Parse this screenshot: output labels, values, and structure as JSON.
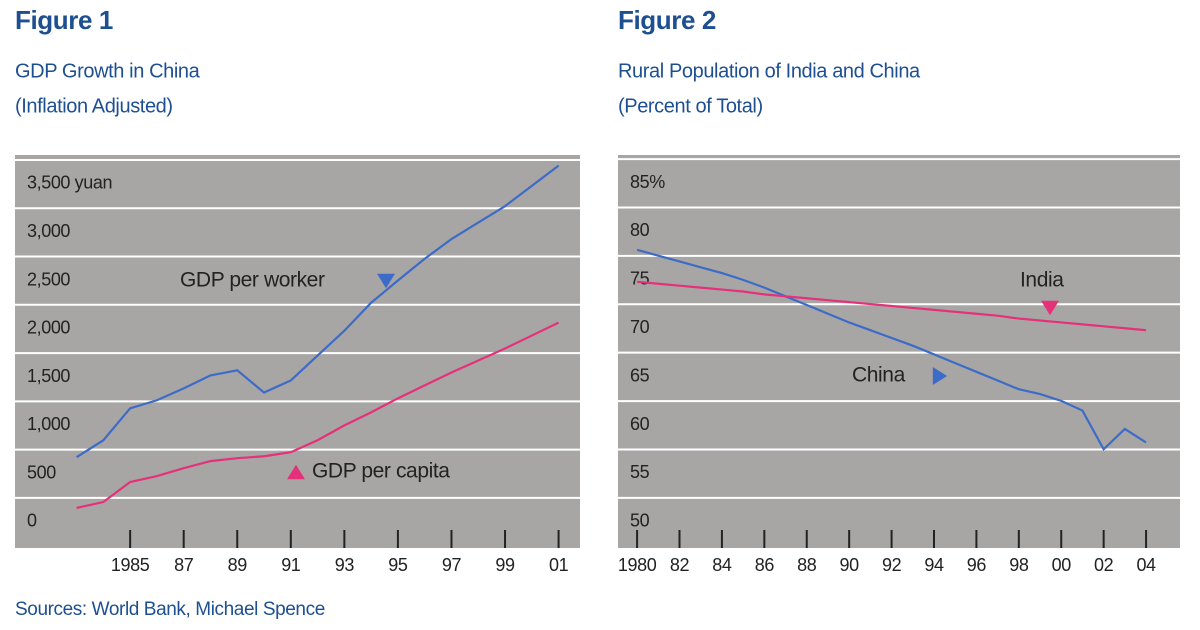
{
  "chart_data": [
    {
      "type": "line",
      "figure": "Figure 1",
      "title": "GDP Growth in China",
      "subtitle": "(Inflation Adjusted)",
      "x": [
        1983,
        1984,
        1985,
        1986,
        1987,
        1988,
        1989,
        1990,
        1991,
        1992,
        1993,
        1994,
        1995,
        1996,
        1997,
        1998,
        1999,
        2000,
        2001
      ],
      "series": [
        {
          "name": "GDP per worker",
          "color": "#3d6bc8",
          "values": [
            670,
            846,
            1177,
            1260,
            1383,
            1517,
            1570,
            1340,
            1465,
            1723,
            1980,
            2270,
            2500,
            2725,
            2930,
            3100,
            3270,
            3480,
            3690
          ]
        },
        {
          "name": "GDP per capita",
          "color": "#e5307a",
          "values": [
            145,
            206,
            413,
            475,
            557,
            630,
            660,
            680,
            722,
            846,
            1000,
            1135,
            1280,
            1414,
            1548,
            1672,
            1796,
            1930,
            2064
          ]
        }
      ],
      "xlim": [
        1980.7,
        2001.8
      ],
      "xticks": [
        {
          "value": 1985,
          "label": "1985"
        },
        {
          "value": 1987,
          "label": "87"
        },
        {
          "value": 1989,
          "label": "89"
        },
        {
          "value": 1991,
          "label": "91"
        },
        {
          "value": 1993,
          "label": "93"
        },
        {
          "value": 1995,
          "label": "95"
        },
        {
          "value": 1997,
          "label": "97"
        },
        {
          "value": 1999,
          "label": "99"
        },
        {
          "value": 2001,
          "label": "01"
        }
      ],
      "ylim": [
        -270,
        3800
      ],
      "yticks": [
        0,
        500,
        {
          "value": 1000,
          "label": "1,000"
        },
        {
          "value": 1500,
          "label": "1,500"
        },
        {
          "value": 2000,
          "label": "2,000"
        },
        {
          "value": 2500,
          "label": "2,500"
        },
        {
          "value": 3000,
          "label": "3,000"
        },
        {
          "value": 3500,
          "label": "3,500 yuan"
        }
      ],
      "grid": true
    },
    {
      "type": "line",
      "figure": "Figure 2",
      "title": "Rural Population of India and China",
      "subtitle": "(Percent of Total)",
      "x": [
        1980,
        1981,
        1982,
        1983,
        1984,
        1985,
        1986,
        1987,
        1988,
        1989,
        1990,
        1991,
        1992,
        1993,
        1994,
        1995,
        1996,
        1997,
        1998,
        1999,
        2000,
        2001,
        2002,
        2003,
        2004
      ],
      "series": [
        {
          "name": "China",
          "color": "#3d6bc8",
          "values": [
            78.1,
            77.5,
            76.9,
            76.3,
            75.7,
            75.0,
            74.2,
            73.3,
            72.4,
            71.5,
            70.6,
            69.8,
            69.0,
            68.2,
            67.3,
            66.4,
            65.5,
            64.6,
            63.7,
            63.2,
            62.5,
            61.5,
            57.5,
            59.6,
            58.2
          ]
        },
        {
          "name": "India",
          "color": "#e5307a",
          "values": [
            74.8,
            74.6,
            74.4,
            74.2,
            74.0,
            73.8,
            73.5,
            73.3,
            73.1,
            72.9,
            72.7,
            72.5,
            72.3,
            72.1,
            71.9,
            71.7,
            71.5,
            71.3,
            71.0,
            70.8,
            70.6,
            70.4,
            70.2,
            70.0,
            69.8
          ]
        }
      ],
      "xlim": [
        1979.1,
        2005.6
      ],
      "xticks": [
        {
          "value": 1980,
          "label": "1980"
        },
        {
          "value": 1982,
          "label": "82"
        },
        {
          "value": 1984,
          "label": "84"
        },
        {
          "value": 1986,
          "label": "86"
        },
        {
          "value": 1988,
          "label": "88"
        },
        {
          "value": 1990,
          "label": "90"
        },
        {
          "value": 1992,
          "label": "92"
        },
        {
          "value": 1994,
          "label": "94"
        },
        {
          "value": 1996,
          "label": "96"
        },
        {
          "value": 1998,
          "label": "98"
        },
        {
          "value": 2000,
          "label": "00"
        },
        {
          "value": 2002,
          "label": "02"
        },
        {
          "value": 2004,
          "label": "04"
        }
      ],
      "ylim": [
        47.3,
        87.9
      ],
      "yticks": [
        50,
        55,
        60,
        65,
        70,
        75,
        80,
        {
          "value": 85,
          "label": "85%"
        }
      ],
      "grid": true
    }
  ],
  "source": "Sources: World Bank, Michael Spence"
}
